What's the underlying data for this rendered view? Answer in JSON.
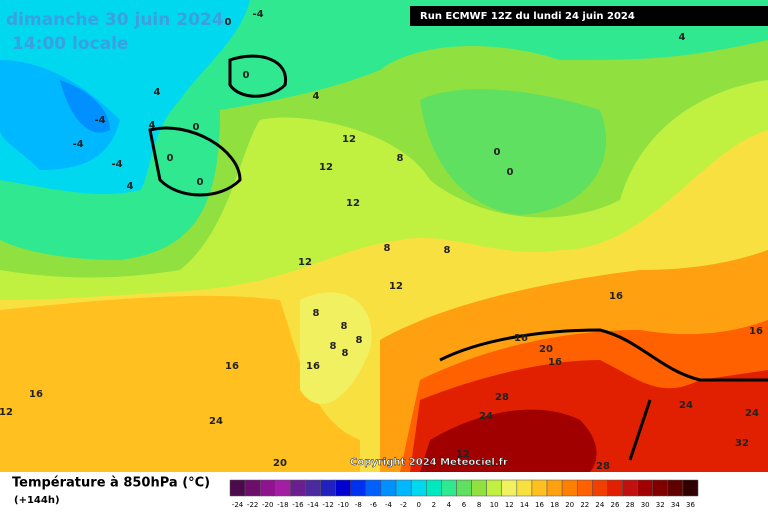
{
  "header": {
    "title": "dimanche 30 juin 2024",
    "subtitle": "14:00 locale",
    "run": "Run ECMWF 12Z du lundi 24 juin 2024"
  },
  "copyright": "Copyright 2024 Meteociel.fr",
  "legend": {
    "title": "Température à 850hPa (°C)",
    "lead": "(+144h)",
    "scale": {
      "values": [
        -24,
        -22,
        -20,
        -18,
        -16,
        -14,
        -12,
        -10,
        -8,
        -6,
        -4,
        -2,
        0,
        2,
        4,
        6,
        8,
        10,
        12,
        14,
        16,
        18,
        20,
        22,
        24,
        26,
        28,
        30,
        32,
        34,
        36
      ],
      "colors": [
        "#4b0a4b",
        "#6b0f6b",
        "#8f158f",
        "#a31ea3",
        "#6b1f8f",
        "#4b2a9f",
        "#2020c0",
        "#0000d0",
        "#0030f0",
        "#0060ff",
        "#0090ff",
        "#00b8ff",
        "#00d8f0",
        "#00e8c0",
        "#30e890",
        "#60e060",
        "#90e040",
        "#c0f040",
        "#f0f060",
        "#f8e040",
        "#ffc020",
        "#ffa010",
        "#ff8000",
        "#ff6000",
        "#f04000",
        "#e02000",
        "#c01010",
        "#a00000",
        "#800000",
        "#600000",
        "#300000"
      ]
    }
  },
  "contour_labels": [
    "0",
    "-4",
    "4",
    "0",
    "4",
    "-4",
    "4",
    "0",
    "4",
    "-4",
    "0",
    "-4",
    "4",
    "0",
    "12",
    "12",
    "8",
    "0",
    "0",
    "12",
    "8",
    "8",
    "12",
    "12",
    "8",
    "8",
    "8",
    "8",
    "8",
    "16",
    "16",
    "16",
    "20",
    "16",
    "16",
    "16",
    "12",
    "24",
    "28",
    "24",
    "24",
    "24",
    "32",
    "12",
    "20",
    "28",
    "16"
  ]
}
